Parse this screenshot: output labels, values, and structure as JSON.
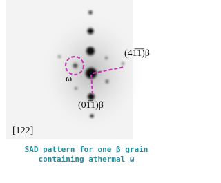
{
  "figure": {
    "labels": {
      "plane_411": "(41̅1̅)β",
      "omega": "ω",
      "plane_011": "(01̅1)β",
      "zone_axis": "[122]"
    },
    "caption": [
      "SAD pattern for one β grain",
      "containing athermal ω"
    ]
  }
}
